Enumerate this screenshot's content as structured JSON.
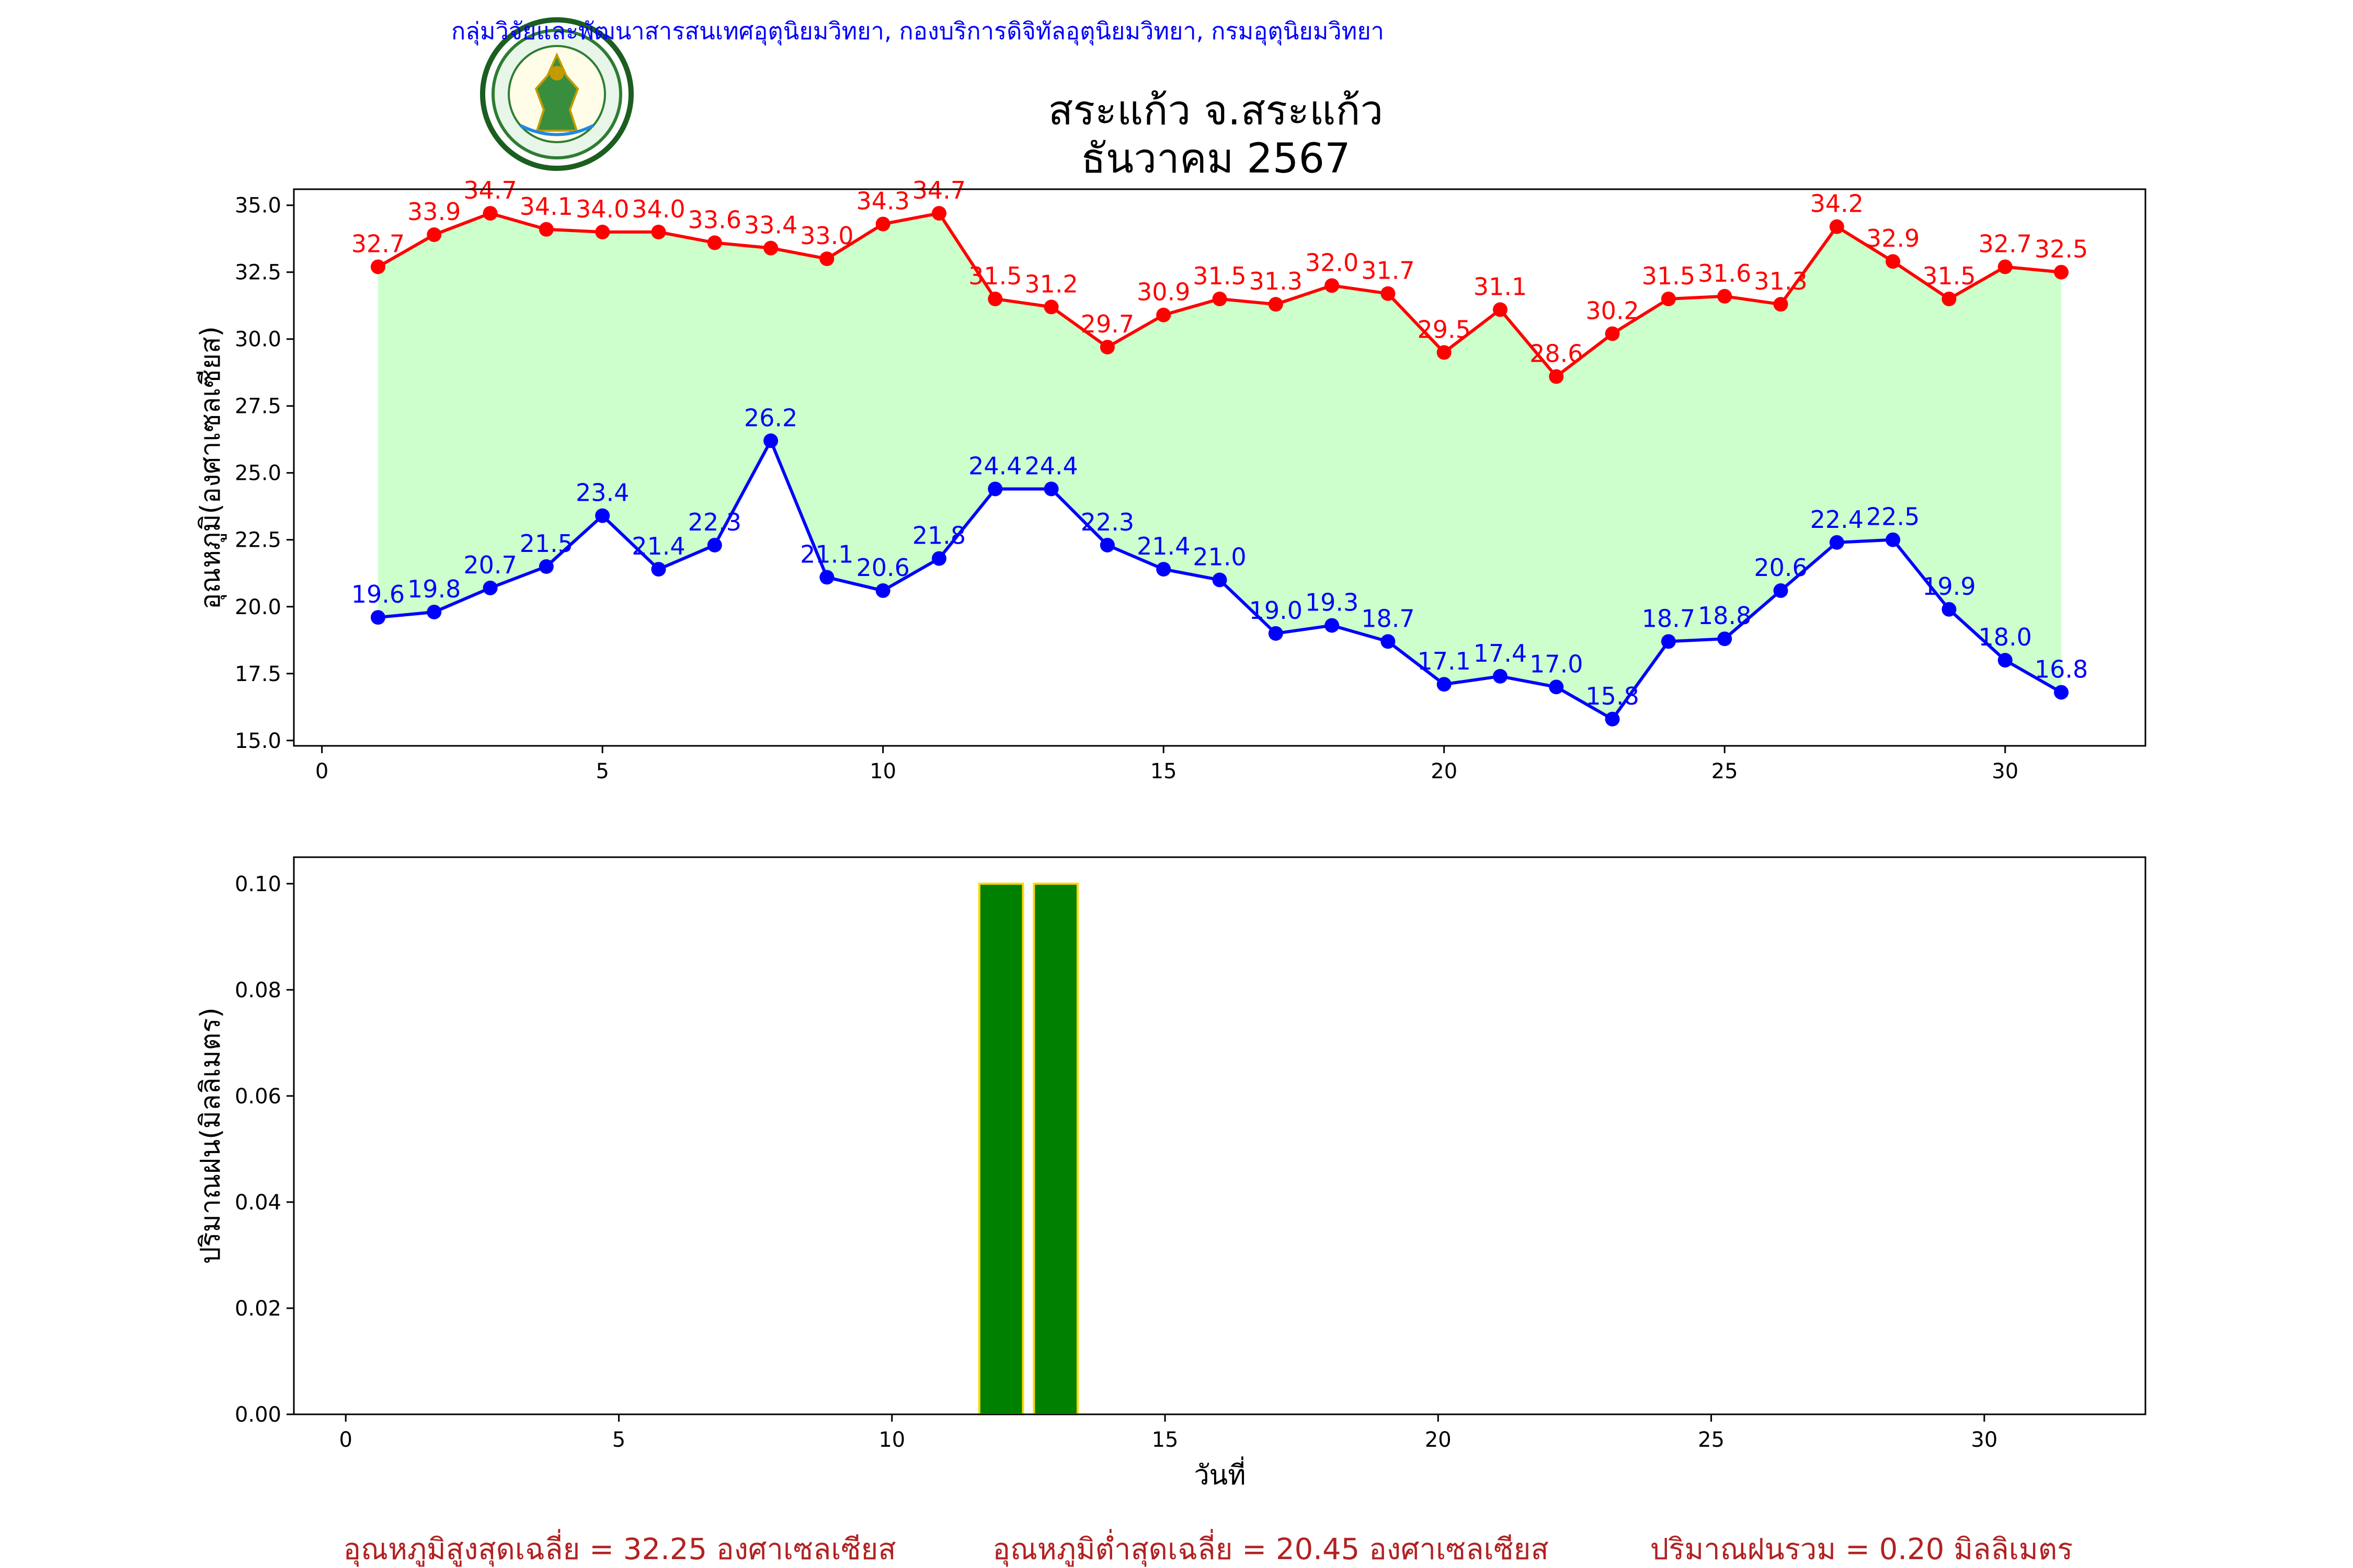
{
  "header": {
    "source": "กลุ่มวิจัยและพัฒนาสารสนเทศอุตุนิยมวิทยา, กองบริการดิจิทัลอุตุนิยมวิทยา, กรมอุตุนิยมวิทยา",
    "title_line1": "สระแก้ว จ.สระแก้ว",
    "title_line2": "ธันวาคม 2567",
    "logo_text": "METEOROLOGICAL DEPARTMENT กรมอุตุนิยมวิทยา"
  },
  "footer": {
    "avg_max": "อุณหภูมิสูงสุดเฉลี่ย = 32.25 องศาเซลเซียส",
    "avg_min": "อุณหภูมิต่ำสุดเฉลี่ย = 20.45 องศาเซลเซียส",
    "rain_total": "ปริมาณฝนรวม = 0.20 มิลลิเมตร"
  },
  "colors": {
    "max": "#ff0000",
    "min": "#0000ff",
    "fill": "#ccffcc",
    "bar": "#008000",
    "bar_edge": "#ffd700",
    "header_text": "#0000ff",
    "footer_text": "#b22222"
  },
  "chart_data": [
    {
      "type": "line",
      "x": [
        1,
        2,
        3,
        4,
        5,
        6,
        7,
        8,
        9,
        10,
        11,
        12,
        13,
        14,
        15,
        16,
        17,
        18,
        19,
        20,
        21,
        22,
        23,
        24,
        25,
        26,
        27,
        28,
        29,
        30,
        31
      ],
      "series": [
        {
          "values": [
            32.7,
            33.9,
            34.7,
            34.1,
            34.0,
            34.0,
            33.6,
            33.4,
            33.0,
            34.3,
            34.7,
            31.5,
            31.2,
            29.7,
            30.9,
            31.5,
            31.3,
            32.0,
            31.7,
            29.5,
            31.1,
            28.6,
            30.2,
            31.5,
            31.6,
            31.3,
            34.2,
            32.9,
            31.5,
            32.7,
            32.5
          ],
          "labels": [
            "32.7",
            "33.9",
            "34.7",
            "34.1",
            "34.0",
            "34.0",
            "33.6",
            "33.4",
            "33.0",
            "34.3",
            "34.7",
            "31.5",
            "31.2",
            "29.7",
            "30.9",
            "31.5",
            "31.3",
            "32.0",
            "31.7",
            "29.5",
            "31.1",
            "28.6",
            "30.2",
            "31.5",
            "31.6",
            "31.3",
            "34.2",
            "32.9",
            "31.5",
            "32.7",
            "32.5"
          ]
        },
        {
          "values": [
            19.6,
            19.8,
            20.7,
            21.5,
            23.4,
            21.4,
            22.3,
            26.2,
            21.1,
            20.6,
            21.8,
            24.4,
            24.4,
            22.3,
            21.4,
            21.0,
            19.0,
            19.3,
            18.7,
            17.1,
            17.4,
            17.0,
            15.8,
            18.7,
            18.8,
            20.6,
            22.4,
            22.5,
            19.9,
            18.0,
            16.8
          ],
          "labels": [
            "19.6",
            "19.8",
            "20.7",
            "21.5",
            "23.4",
            "21.4",
            "22.3",
            "26.2",
            "21.1",
            "20.6",
            "21.8",
            "24.4",
            "24.4",
            "22.3",
            "21.4",
            "21.0",
            "19.0",
            "19.3",
            "18.7",
            "17.1",
            "17.4",
            "17.0",
            "15.8",
            "18.7",
            "18.8",
            "20.6",
            "22.4",
            "22.5",
            "19.9",
            "18.0",
            "16.8"
          ]
        }
      ],
      "ylabel": "อุณหภูมิ(องศาเซลเซียส)",
      "xlim": [
        -0.5,
        32.5
      ],
      "ylim": [
        14.8,
        35.6
      ],
      "xticks": [
        "0",
        "5",
        "10",
        "15",
        "20",
        "25",
        "30"
      ],
      "yticks": [
        "15.0",
        "17.5",
        "20.0",
        "22.5",
        "25.0",
        "27.5",
        "30.0",
        "32.5",
        "35.0"
      ],
      "fill_between": true
    },
    {
      "type": "bar",
      "x": [
        1,
        2,
        3,
        4,
        5,
        6,
        7,
        8,
        9,
        10,
        11,
        12,
        13,
        14,
        15,
        16,
        17,
        18,
        19,
        20,
        21,
        22,
        23,
        24,
        25,
        26,
        27,
        28,
        29,
        30,
        31
      ],
      "values": [
        0,
        0,
        0,
        0,
        0,
        0,
        0,
        0,
        0,
        0,
        0,
        0.1,
        0.1,
        0,
        0,
        0,
        0,
        0,
        0,
        0,
        0,
        0,
        0,
        0,
        0,
        0,
        0,
        0,
        0,
        0,
        0
      ],
      "ylabel": "ปริมาณฝน(มิลลิเมตร)",
      "xlabel": "วันที่",
      "xlim": [
        -0.95,
        32.95
      ],
      "ylim": [
        0,
        0.105
      ],
      "xticks": [
        "0",
        "5",
        "10",
        "15",
        "20",
        "25",
        "30"
      ],
      "yticks": [
        "0.00",
        "0.02",
        "0.04",
        "0.06",
        "0.08",
        "0.10"
      ]
    }
  ]
}
